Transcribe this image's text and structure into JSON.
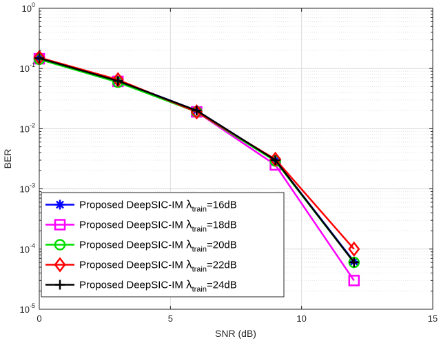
{
  "chart_data": {
    "type": "line",
    "xlabel": "SNR (dB)",
    "ylabel": "BER",
    "xlim": [
      0,
      15
    ],
    "ylim": [
      1e-05,
      1
    ],
    "yscale": "log",
    "grid": true,
    "legend_position": "bottom-left",
    "xticks": [
      "0",
      "5",
      "10",
      "15"
    ],
    "yticks": [
      {
        "base": "10",
        "exp": "0"
      },
      {
        "base": "10",
        "exp": "-1"
      },
      {
        "base": "10",
        "exp": "-2"
      },
      {
        "base": "10",
        "exp": "-3"
      },
      {
        "base": "10",
        "exp": "-4"
      },
      {
        "base": "10",
        "exp": "-5"
      }
    ],
    "x": [
      0,
      3,
      6,
      9,
      12
    ],
    "series": [
      {
        "name": "Proposed DeepSIC-IM λtrain=16dB",
        "prefix": "Proposed DeepSIC-IM ",
        "symbol": "λ",
        "sub": "train",
        "suffix": "=16dB",
        "color": "#0000ff",
        "marker": "asterisk",
        "values": [
          0.15,
          0.063,
          0.02,
          0.003,
          6.2e-05
        ]
      },
      {
        "name": "Proposed DeepSIC-IM λtrain=18dB",
        "prefix": "Proposed DeepSIC-IM ",
        "symbol": "λ",
        "sub": "train",
        "suffix": "=18dB",
        "color": "#ff00ff",
        "marker": "square",
        "values": [
          0.145,
          0.061,
          0.019,
          0.0025,
          3e-05
        ]
      },
      {
        "name": "Proposed DeepSIC-IM λtrain=20dB",
        "prefix": "Proposed DeepSIC-IM ",
        "symbol": "λ",
        "sub": "train",
        "suffix": "=20dB",
        "color": "#00dd00",
        "marker": "circle",
        "values": [
          0.142,
          0.059,
          0.019,
          0.0029,
          6e-05
        ]
      },
      {
        "name": "Proposed DeepSIC-IM λtrain=22dB",
        "prefix": "Proposed DeepSIC-IM ",
        "symbol": "λ",
        "sub": "train",
        "suffix": "=22dB",
        "color": "#ff0000",
        "marker": "diamond",
        "values": [
          0.152,
          0.065,
          0.019,
          0.0031,
          0.0001
        ]
      },
      {
        "name": "Proposed DeepSIC-IM λtrain=24dB",
        "prefix": "Proposed DeepSIC-IM ",
        "symbol": "λ",
        "sub": "train",
        "suffix": "=24dB",
        "color": "#000000",
        "marker": "plus",
        "values": [
          0.148,
          0.062,
          0.02,
          0.003,
          6e-05
        ]
      }
    ]
  }
}
